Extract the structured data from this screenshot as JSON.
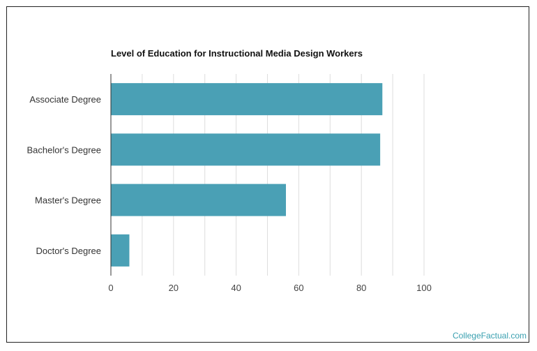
{
  "chart_data": {
    "type": "bar",
    "orientation": "horizontal",
    "title": "Level of Education for Instructional Media Design Workers",
    "categories": [
      "Associate Degree",
      "Bachelor's Degree",
      "Master's Degree",
      "Doctor's Degree"
    ],
    "values": [
      86.7,
      86.0,
      55.9,
      5.9
    ],
    "xlim": [
      0,
      100
    ],
    "xticks": [
      0,
      20,
      40,
      60,
      80,
      100
    ],
    "xlabel": "",
    "ylabel": "",
    "grid": true,
    "legend": "none",
    "bar_color": "#4aa0b5",
    "grid_color": "#dddddd"
  },
  "watermark": "CollegeFactual.com",
  "colors": {
    "axis": "#333333",
    "watermark": "#3aa0b0"
  }
}
